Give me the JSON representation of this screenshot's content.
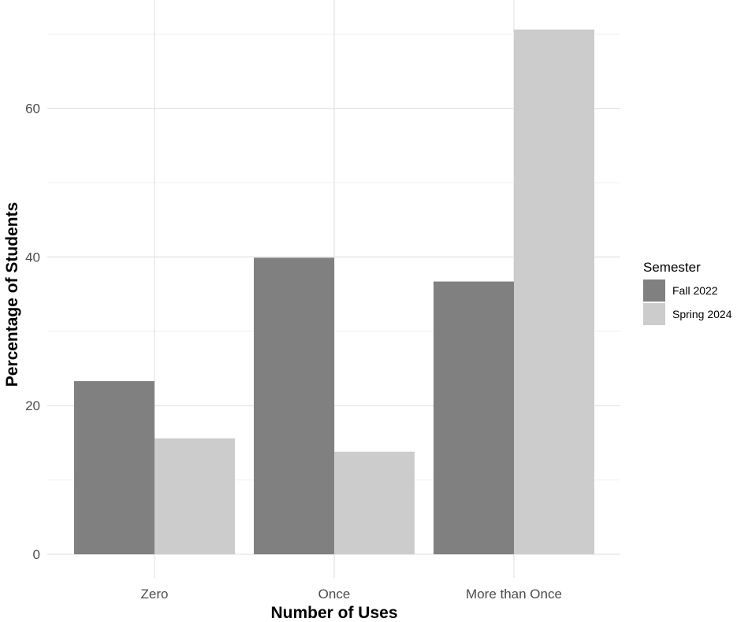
{
  "chart_data": {
    "type": "bar",
    "xlabel": "Number of Uses",
    "ylabel": "Percentage of Students",
    "categories": [
      "Zero",
      "Once",
      "More than Once"
    ],
    "series": [
      {
        "name": "Fall 2022",
        "values": [
          23.3,
          39.9,
          36.7
        ],
        "color": "#808080"
      },
      {
        "name": "Spring 2024",
        "values": [
          15.6,
          13.8,
          70.6
        ],
        "color": "#cccccc"
      }
    ],
    "ylim": [
      0,
      72
    ],
    "yticks": [
      0,
      20,
      40,
      60
    ],
    "grid": true,
    "legend": {
      "title": "Semester",
      "position": "right"
    }
  }
}
